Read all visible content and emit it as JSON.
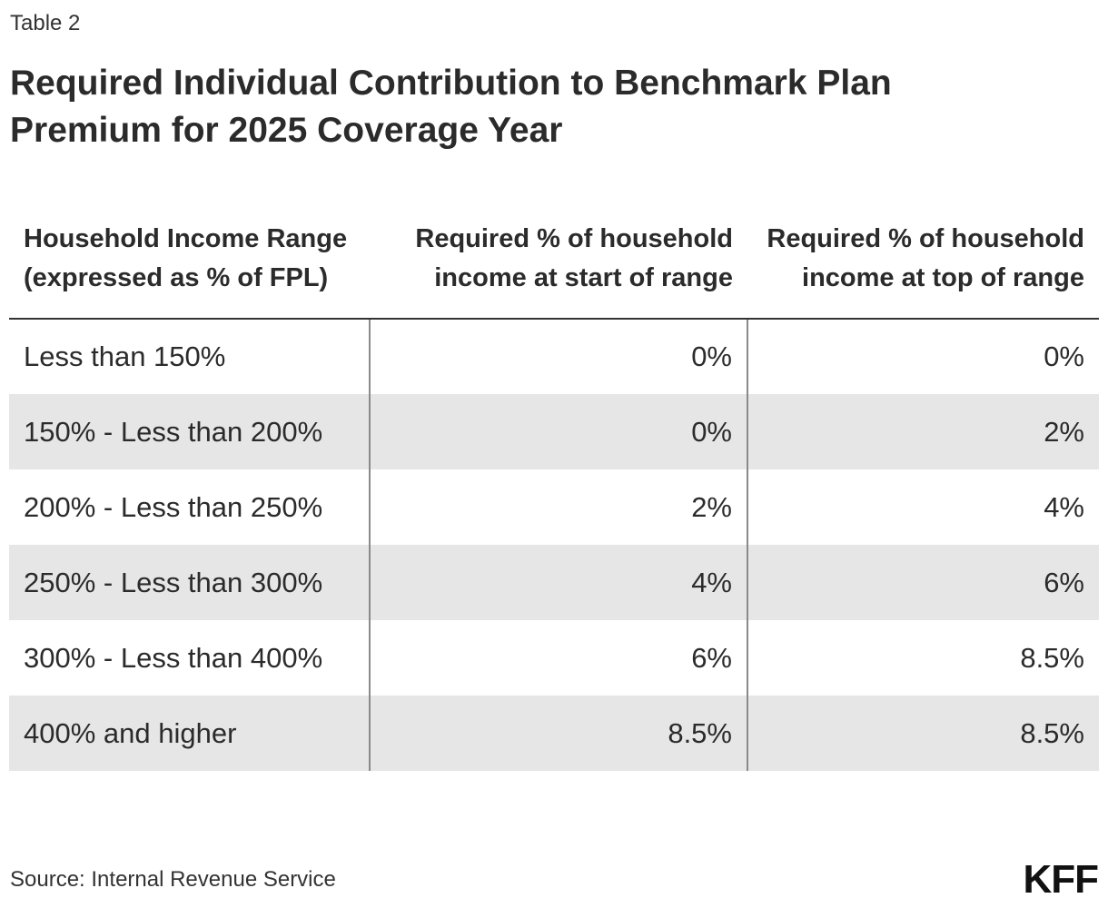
{
  "header": {
    "table_label": "Table 2",
    "title": "Required Individual Contribution to Benchmark Plan Premium for 2025 Coverage Year"
  },
  "chart_data": {
    "type": "table",
    "columns": [
      "Household Income Range (expressed as % of FPL)",
      "Required % of household income at start of range",
      "Required % of household income at top of range"
    ],
    "rows": [
      [
        "Less than 150%",
        "0%",
        "0%"
      ],
      [
        "150% - Less than 200%",
        "0%",
        "2%"
      ],
      [
        "200% - Less than 250%",
        "2%",
        "4%"
      ],
      [
        "250% - Less than 300%",
        "4%",
        "6%"
      ],
      [
        "300% - Less than 400%",
        "6%",
        "8.5%"
      ],
      [
        "400% and higher",
        "8.5%",
        "8.5%"
      ]
    ]
  },
  "footer": {
    "source": "Source: Internal Revenue Service",
    "logo_text": "KFF"
  }
}
